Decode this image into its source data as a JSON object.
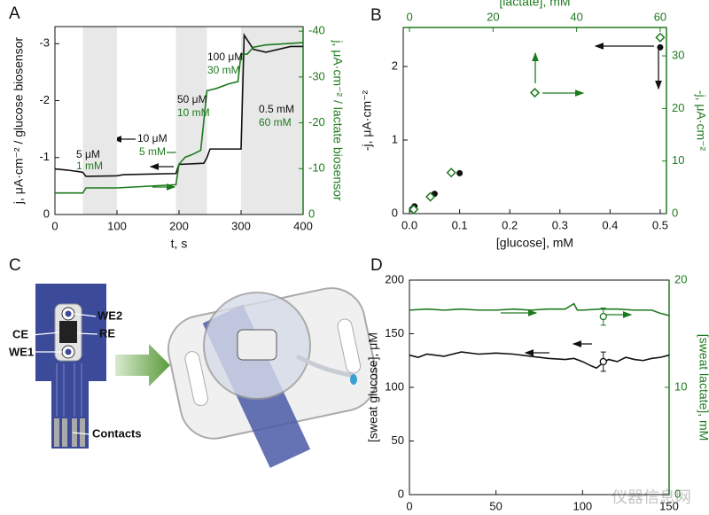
{
  "chart_data": [
    {
      "type": "line",
      "panel_label": "A",
      "xlabel": "t, s",
      "ylabel": "j, μA·cm⁻² / glucose biosensor",
      "y2label": "j, μA·cm⁻² / lactate biosensor",
      "xlim": [
        0,
        400
      ],
      "xticks": [
        0,
        100,
        200,
        300,
        400
      ],
      "ylim": [
        0,
        -3.3
      ],
      "yticks": [
        0,
        -1,
        -2,
        -3
      ],
      "y2lim": [
        0,
        -41
      ],
      "y2ticks": [
        0,
        -10,
        -20,
        -30,
        -40
      ],
      "shaded_x": [
        [
          45,
          100
        ],
        [
          195,
          245
        ],
        [
          300,
          400
        ]
      ],
      "series": [
        {
          "color": "#111111",
          "x": [
            0,
            20,
            40,
            45,
            50,
            100,
            110,
            150,
            195,
            200,
            240,
            245,
            250,
            300,
            305,
            320,
            340,
            380,
            400
          ],
          "values": [
            -0.8,
            -0.78,
            -0.75,
            -0.74,
            -0.67,
            -0.68,
            -0.7,
            -0.71,
            -0.72,
            -0.88,
            -0.9,
            -1.0,
            -1.15,
            -1.15,
            -3.15,
            -2.9,
            -2.85,
            -2.95,
            -2.95
          ]
        },
        {
          "color": "#1e7a1e",
          "axis": "y2",
          "x": [
            0,
            45,
            50,
            100,
            195,
            200,
            210,
            220,
            235,
            245,
            260,
            280,
            295,
            300,
            310,
            320,
            340,
            400
          ],
          "values": [
            -4.7,
            -4.7,
            -5.8,
            -5.8,
            -6.5,
            -11,
            -12.5,
            -13,
            -14,
            -27,
            -27.5,
            -28.5,
            -29,
            -35,
            -35,
            -36.5,
            -37,
            -37.5
          ]
        }
      ],
      "annotations": [
        {
          "text": "5 μM",
          "color": "#111111"
        },
        {
          "text": "1 mM",
          "color": "#1e7a1e"
        },
        {
          "text": "10 μM",
          "color": "#111111"
        },
        {
          "text": "5 mM",
          "color": "#1e7a1e"
        },
        {
          "text": "50 μM",
          "color": "#111111"
        },
        {
          "text": "10 mM",
          "color": "#1e7a1e"
        },
        {
          "text": "100 μM",
          "color": "#111111"
        },
        {
          "text": "30 mM",
          "color": "#1e7a1e"
        },
        {
          "text": "0.5 mM",
          "color": "#111111"
        },
        {
          "text": "60 mM",
          "color": "#1e7a1e"
        }
      ]
    },
    {
      "type": "scatter",
      "panel_label": "B",
      "xlabel": "[glucose], mM",
      "x2label": "[lactate], mM",
      "ylabel": "-j, μA·cm⁻²",
      "y2label": "-j, μA·cm⁻²",
      "xlim": [
        -0.0125,
        0.5125
      ],
      "xticks": [
        {
          "value": 0,
          "label": "0.0"
        },
        0.1,
        0.2,
        0.3,
        0.4,
        0.5
      ],
      "x2lim": [
        -1.5,
        61.5
      ],
      "x2ticks": [
        0,
        20,
        40,
        60
      ],
      "ylim": [
        0,
        2.53
      ],
      "yticks": [
        0,
        1,
        2
      ],
      "y2lim": [
        0,
        35.4
      ],
      "y2ticks": [
        0,
        10,
        20,
        30
      ],
      "series": [
        {
          "color": "#111111",
          "style": "filled-circle",
          "x": [
            0.005,
            0.01,
            0.05,
            0.1,
            0.5
          ],
          "values": [
            0.06,
            0.1,
            0.27,
            0.55,
            2.26
          ]
        },
        {
          "color": "#1e7a1e",
          "style": "open-diamond",
          "axis": "y2",
          "xaxis": "x2",
          "x": [
            1,
            5,
            10,
            30,
            60
          ],
          "values": [
            0.8,
            3.2,
            7.8,
            23,
            33.5
          ]
        }
      ]
    },
    {
      "type": "line",
      "panel_label": "D",
      "xlabel": "t, s",
      "ylabel": "[sweat glucose], μM",
      "y2label": "[sweat lactate], mM",
      "xlim": [
        0,
        150
      ],
      "xticks": [
        0,
        50,
        100,
        150
      ],
      "ylim": [
        0,
        200
      ],
      "yticks": [
        0,
        50,
        100,
        150,
        200
      ],
      "y2lim": [
        0,
        20
      ],
      "y2ticks": [
        0,
        10,
        20
      ],
      "series": [
        {
          "color": "#111111",
          "x": [
            0,
            5,
            10,
            20,
            30,
            40,
            50,
            60,
            70,
            80,
            90,
            95,
            100,
            105,
            108,
            112,
            115,
            120,
            125,
            130,
            135,
            140,
            145,
            150
          ],
          "values": [
            130,
            128,
            131,
            129,
            133,
            131,
            132,
            131,
            129,
            127,
            126,
            127,
            124,
            120,
            118,
            123,
            126,
            124,
            128,
            126,
            125,
            127,
            128,
            130
          ]
        },
        {
          "color": "#1e7a1e",
          "axis": "y2",
          "x": [
            0,
            10,
            20,
            30,
            40,
            50,
            60,
            70,
            80,
            90,
            95,
            97,
            100,
            110,
            120,
            130,
            140,
            145,
            150
          ],
          "values": [
            17.2,
            17.3,
            17.2,
            17.3,
            17.2,
            17.2,
            17.3,
            17.2,
            17.3,
            17.3,
            17.8,
            17.2,
            17.2,
            17.3,
            17.3,
            17.2,
            17.2,
            16.9,
            16.7
          ]
        },
        {
          "color": "#111111",
          "style": "open-circle",
          "x": [
            112
          ],
          "values": [
            124
          ],
          "errors": [
            9
          ]
        },
        {
          "color": "#1e7a1e",
          "style": "open-circle",
          "axis": "y2",
          "x": [
            112
          ],
          "values": [
            16.6
          ],
          "errors": [
            0.8
          ]
        }
      ]
    }
  ],
  "diagram": {
    "panel_label": "C",
    "labels": [
      "CE",
      "WE2",
      "RE",
      "WE1",
      "Contacts"
    ]
  },
  "watermark": "仪器信息网"
}
